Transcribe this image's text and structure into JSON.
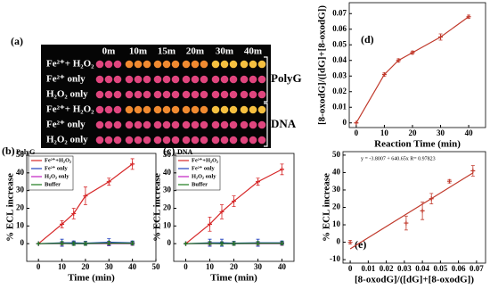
{
  "panel_a": {
    "label": "(a)",
    "columns": [
      "0m",
      "10m",
      "15m",
      "20m",
      "30m",
      "40m"
    ],
    "rows": [
      "Fe²⁺+ H₂O₂",
      "Fe²⁺ only",
      "H₂O₂ only",
      "Fe²⁺+ H₂O₂",
      "Fe²⁺ only",
      "H₂O₂ only"
    ],
    "groups": [
      "PolyG",
      "DNA"
    ]
  },
  "chart_data": [
    {
      "type": "line",
      "panel": "(b)",
      "title": "PolyG",
      "xlabel": "Time (min)",
      "ylabel": "% ECL increase",
      "xlim": [
        -5,
        50
      ],
      "xticks": [
        0,
        10,
        20,
        30,
        40,
        50
      ],
      "ylim": [
        -10,
        51
      ],
      "yticks": [
        0,
        10,
        20,
        30,
        40,
        50
      ],
      "x": [
        0,
        10,
        15,
        20,
        30,
        40
      ],
      "series": [
        {
          "name": "Fe²⁺+H₂O₂",
          "color": "#d62728",
          "values": [
            0,
            11,
            17,
            27,
            35,
            45
          ],
          "errors": [
            0,
            2,
            3,
            5,
            2,
            3
          ]
        },
        {
          "name": "Fe²⁺ only",
          "color": "#1f3fbf",
          "values": [
            0,
            0.5,
            0.5,
            0.3,
            0.8,
            0.5
          ],
          "errors": [
            0,
            2,
            1,
            1,
            2,
            1
          ]
        },
        {
          "name": "H₂O₂ only",
          "color": "#c020c0",
          "values": [
            0,
            0,
            0,
            0,
            0,
            0
          ],
          "errors": [
            0,
            1,
            1,
            1,
            1,
            1
          ]
        },
        {
          "name": "Buffer",
          "color": "#1a7a1a",
          "values": [
            0,
            0.2,
            0,
            0.1,
            0.3,
            0.2
          ],
          "errors": [
            0,
            1,
            1,
            1,
            1,
            1
          ]
        }
      ]
    },
    {
      "type": "line",
      "panel": "(c)",
      "title": "DNA",
      "xlabel": "Time (min)",
      "ylabel": "% ECL increase",
      "xlim": [
        -5,
        45
      ],
      "xticks": [
        0,
        10,
        20,
        30,
        40
      ],
      "ylim": [
        -10,
        51
      ],
      "yticks": [
        0,
        10,
        20,
        30,
        40,
        50
      ],
      "x": [
        0,
        10,
        15,
        20,
        30,
        40
      ],
      "series": [
        {
          "name": "Fe²⁺+H₂O₂",
          "color": "#d62728",
          "values": [
            0,
            11,
            18,
            24,
            35,
            42
          ],
          "errors": [
            0,
            4,
            4,
            3,
            2,
            3
          ]
        },
        {
          "name": "Fe²⁺ only",
          "color": "#1f3fbf",
          "values": [
            0,
            0.5,
            0.5,
            0.3,
            0.5,
            0.5
          ],
          "errors": [
            0,
            2,
            2,
            1,
            2,
            1
          ]
        },
        {
          "name": "H₂O₂ only",
          "color": "#c020c0",
          "values": [
            0,
            0,
            0,
            0,
            0,
            0
          ],
          "errors": [
            0,
            1,
            1,
            1,
            1,
            1
          ]
        },
        {
          "name": "Buffer",
          "color": "#1a7a1a",
          "values": [
            0,
            0.2,
            0,
            0.1,
            0.2,
            0.2
          ],
          "errors": [
            0,
            1,
            1,
            1,
            1,
            1
          ]
        }
      ]
    },
    {
      "type": "line",
      "panel": "(d)",
      "xlabel": "Reaction Time (min)",
      "ylabel": "[8-oxodG]/([dG]+[8-oxodG])",
      "xlim": [
        -2.5,
        46
      ],
      "xticks": [
        0,
        10,
        20,
        30,
        40
      ],
      "ylim": [
        -0.003,
        0.077
      ],
      "yticks": [
        0,
        0.01,
        0.02,
        0.03,
        0.04,
        0.05,
        0.06,
        0.07
      ],
      "x": [
        0,
        10,
        15,
        20,
        30,
        40
      ],
      "series": [
        {
          "color": "#c0392b",
          "values": [
            0,
            0.031,
            0.04,
            0.045,
            0.055,
            0.068
          ],
          "errors": [
            0,
            0.001,
            0.001,
            0.001,
            0.002,
            0.001
          ]
        }
      ]
    },
    {
      "type": "scatter",
      "panel": "(e)",
      "xlabel": "[8-oxodG]/([dG]+[8-oxodG])",
      "ylabel": "% ECL increase",
      "annotation": "y = -3.8007 + 640.65x   R= 0.97823",
      "xlim": [
        -0.004,
        0.075
      ],
      "xticks": [
        0,
        0.01,
        0.02,
        0.03,
        0.04,
        0.05,
        0.06,
        0.07
      ],
      "ylim": [
        -12,
        52
      ],
      "yticks": [
        -10,
        0,
        10,
        20,
        30,
        40,
        50
      ],
      "x": [
        0,
        0.031,
        0.04,
        0.045,
        0.055,
        0.068
      ],
      "series": [
        {
          "color": "#c0392b",
          "values": [
            0,
            11,
            18,
            25,
            35,
            41
          ],
          "errors": [
            1,
            4,
            5,
            3,
            1,
            3
          ]
        }
      ],
      "fit": {
        "x": [
          0,
          0.068
        ],
        "y": [
          -3.8,
          39.8
        ]
      }
    }
  ]
}
